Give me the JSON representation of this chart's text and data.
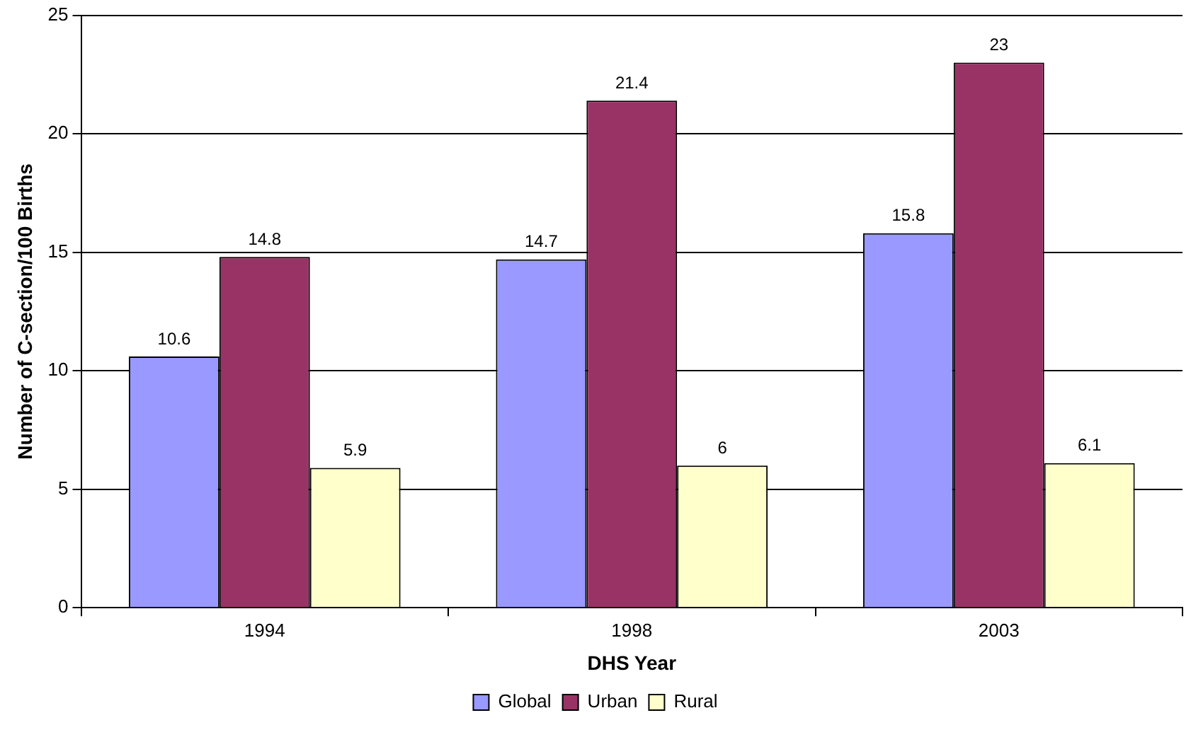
{
  "chart_data": {
    "type": "bar",
    "xlabel": "DHS Year",
    "ylabel": "Number of C-section/100 Births",
    "categories": [
      "1994",
      "1998",
      "2003"
    ],
    "series": [
      {
        "name": "Global",
        "color": "#9999ff",
        "values": [
          10.6,
          14.7,
          15.8
        ]
      },
      {
        "name": "Urban",
        "color": "#993366",
        "values": [
          14.8,
          21.4,
          23
        ]
      },
      {
        "name": "Rural",
        "color": "#ffffcc",
        "values": [
          5.9,
          6,
          6.1
        ]
      }
    ],
    "ylim": [
      0,
      25
    ],
    "yticks": [
      0,
      5,
      10,
      15,
      20,
      25
    ],
    "grid": "y",
    "legend": "bottom",
    "data_labels": true
  }
}
